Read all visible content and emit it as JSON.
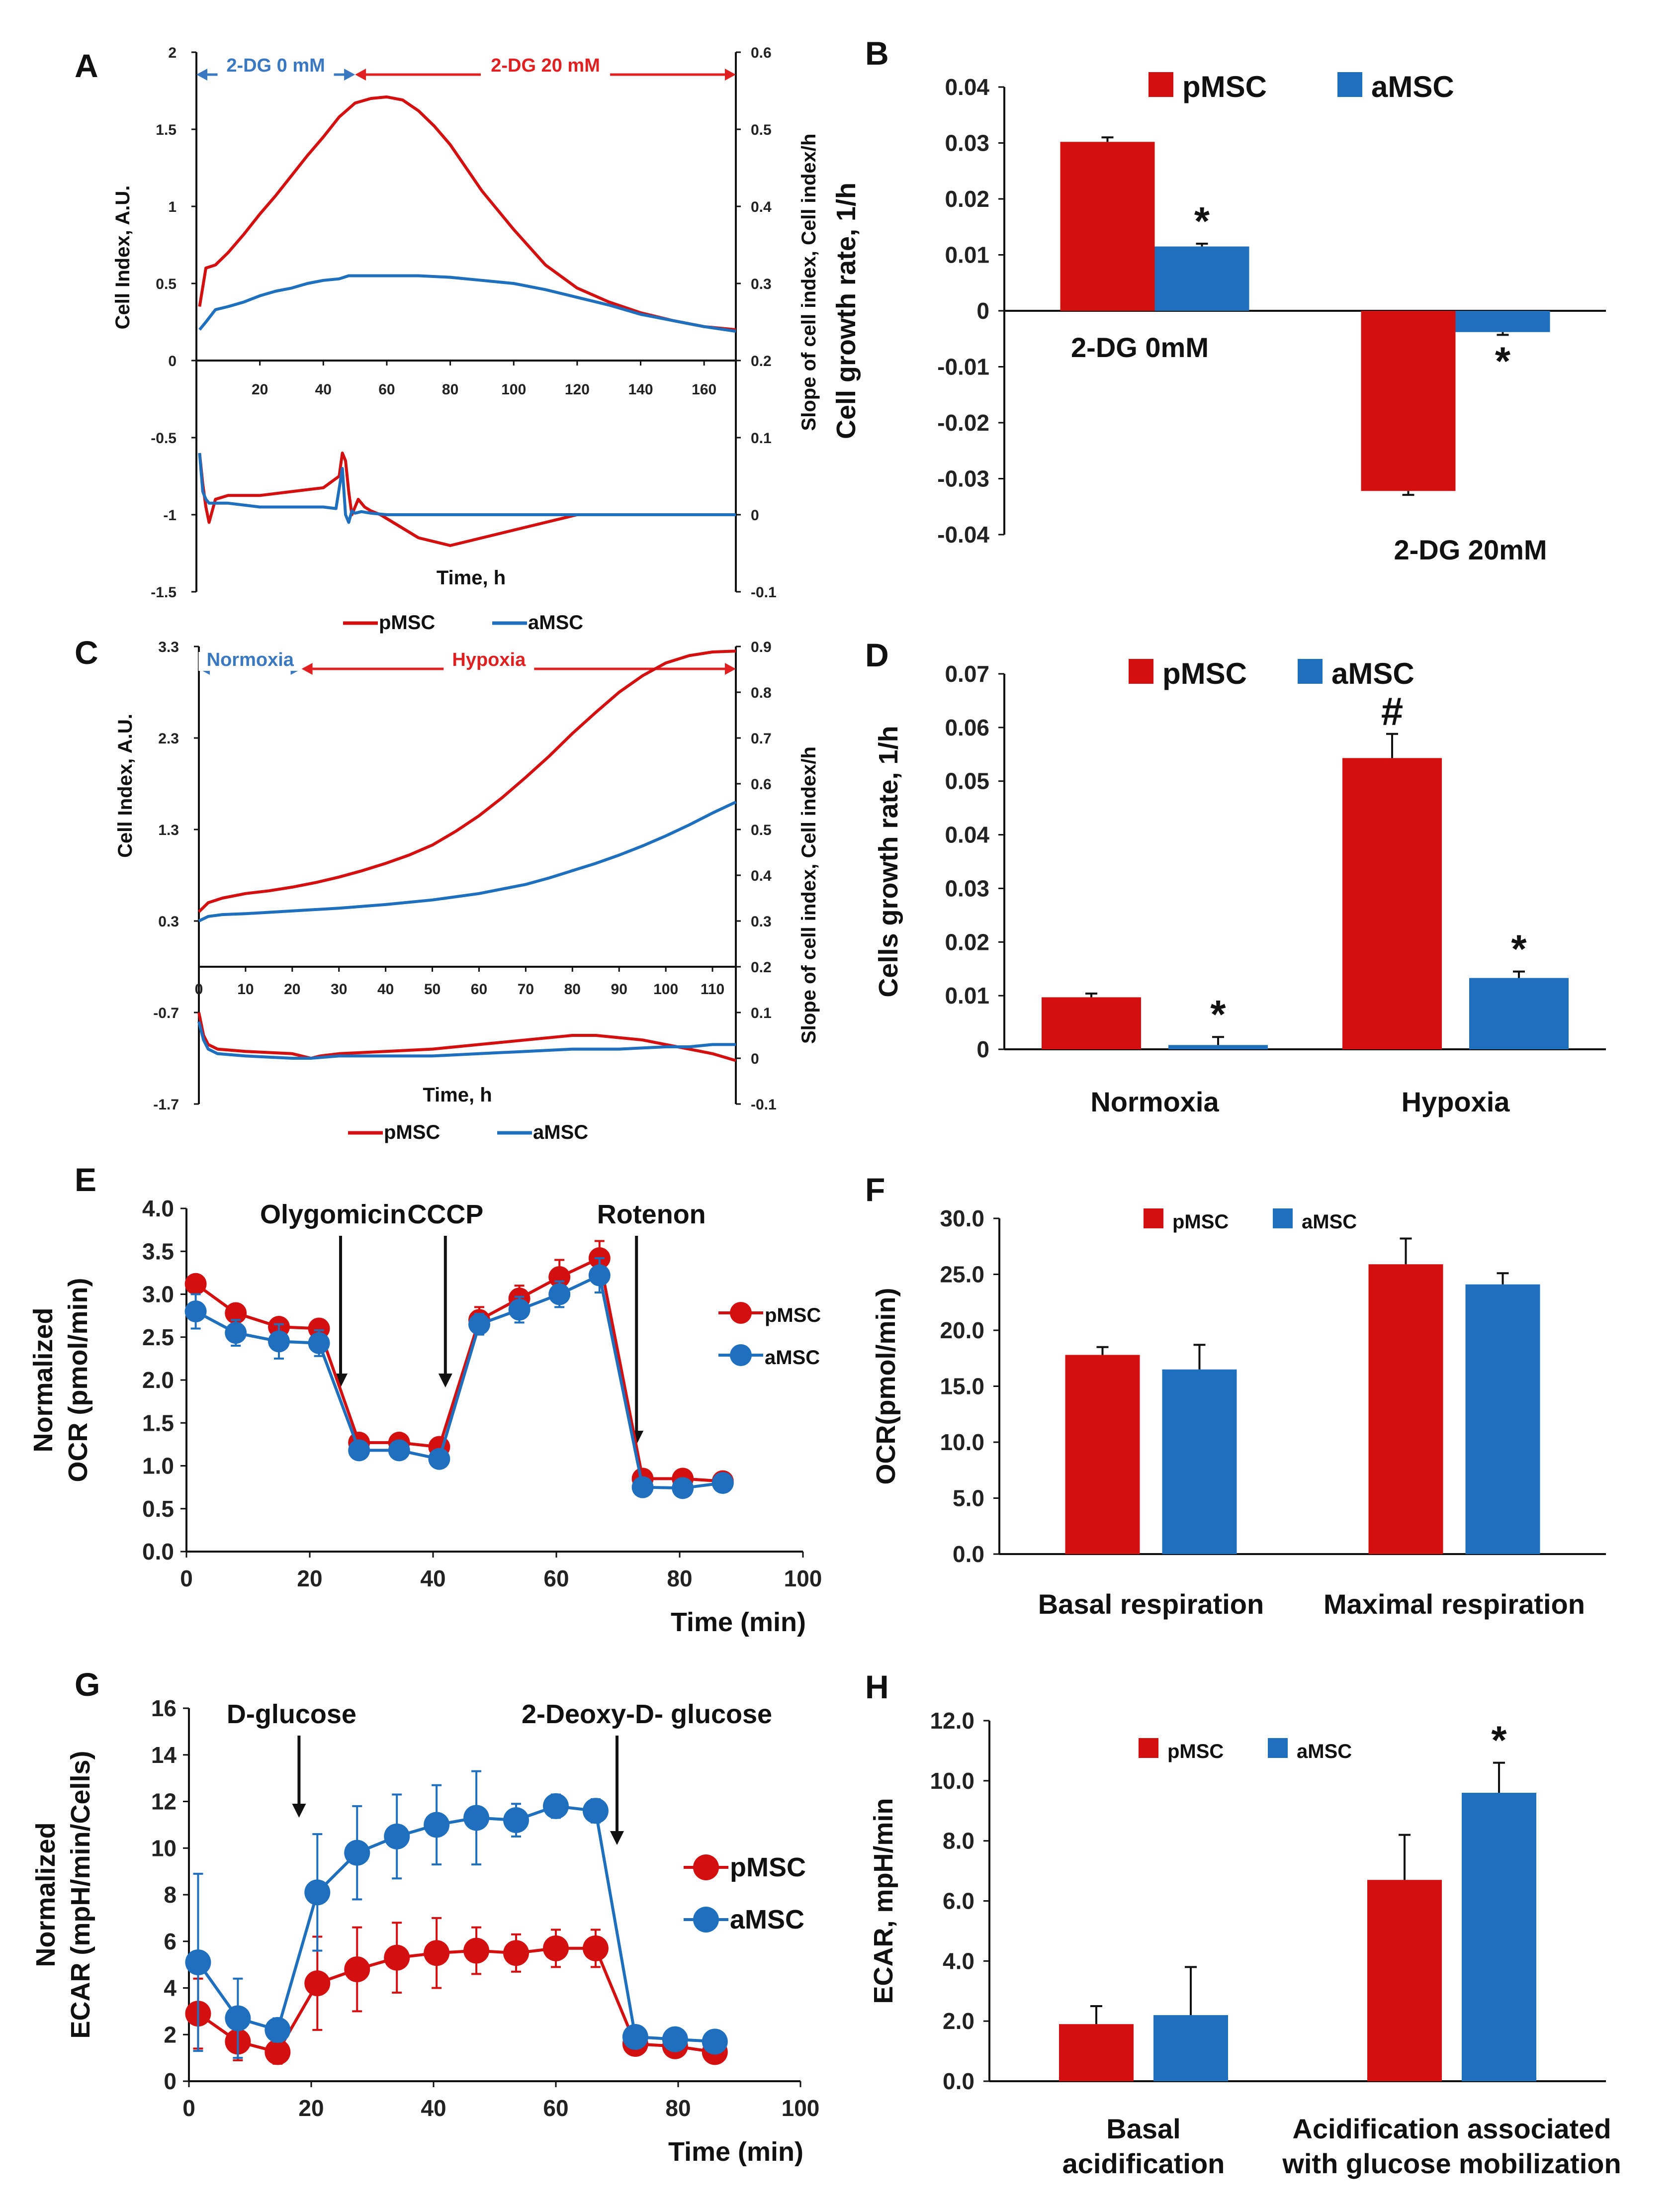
{
  "colors": {
    "pMSC": "#d40f0f",
    "aMSC": "#1f6fbf",
    "axis": "#111111"
  },
  "chart_data": [
    {
      "id": "A",
      "panel_label": "A",
      "type": "line",
      "xlabel": "Time, h",
      "ylabel": "Cell Index, A.U.",
      "y2label": "Slope of cell index, Cell index/h",
      "xlim": [
        0,
        170
      ],
      "ylim": [
        -1.5,
        2
      ],
      "y2lim": [
        -0.1,
        0.6
      ],
      "x_ticks": [
        "20",
        "40",
        "60",
        "80",
        "100",
        "120",
        "140",
        "160"
      ],
      "y_ticks": [
        "2",
        "1.5",
        "1",
        "0.5",
        "0",
        "-0.5",
        "-1",
        "-1.5"
      ],
      "y2_ticks": [
        "0.6",
        "0.5",
        "0.4",
        "0.3",
        "0.2",
        "0.1",
        "0",
        "-0.1"
      ],
      "phases": [
        {
          "label": "2-DG 0 mM",
          "from": 0,
          "to": 50,
          "color": "#3a78c2"
        },
        {
          "label": "2-DG 20 mM",
          "from": 50,
          "to": 170,
          "color": "#e02020"
        }
      ],
      "legend": [
        "pMSC",
        "aMSC"
      ],
      "series": [
        {
          "name": "pMSC",
          "axis": "left",
          "x": [
            1,
            3,
            6,
            10,
            15,
            20,
            25,
            30,
            35,
            40,
            45,
            50,
            55,
            60,
            65,
            70,
            75,
            80,
            90,
            100,
            110,
            120,
            130,
            140,
            150,
            160,
            170
          ],
          "y": [
            0.35,
            0.6,
            0.62,
            0.7,
            0.82,
            0.95,
            1.07,
            1.2,
            1.33,
            1.45,
            1.58,
            1.67,
            1.7,
            1.71,
            1.69,
            1.62,
            1.52,
            1.4,
            1.1,
            0.85,
            0.62,
            0.47,
            0.38,
            0.31,
            0.26,
            0.22,
            0.2
          ]
        },
        {
          "name": "aMSC",
          "axis": "left",
          "x": [
            1,
            3,
            6,
            10,
            15,
            20,
            25,
            30,
            35,
            40,
            45,
            48,
            50,
            55,
            60,
            70,
            80,
            90,
            100,
            110,
            120,
            130,
            140,
            150,
            160,
            170
          ],
          "y": [
            0.2,
            0.25,
            0.33,
            0.35,
            0.38,
            0.42,
            0.45,
            0.47,
            0.5,
            0.52,
            0.53,
            0.55,
            0.55,
            0.55,
            0.55,
            0.55,
            0.54,
            0.52,
            0.5,
            0.46,
            0.41,
            0.36,
            0.3,
            0.26,
            0.22,
            0.19
          ]
        },
        {
          "name": "pMSC",
          "axis": "right",
          "x": [
            1,
            2,
            3,
            4,
            6,
            10,
            20,
            30,
            40,
            45,
            46,
            47,
            48,
            49,
            50,
            51,
            53,
            55,
            58,
            62,
            70,
            80,
            90,
            100,
            110,
            120,
            140,
            160,
            170
          ],
          "y": [
            0.08,
            0.04,
            0.01,
            -0.01,
            0.02,
            0.025,
            0.025,
            0.03,
            0.035,
            0.05,
            0.08,
            0.07,
            0.03,
            0.0,
            0.01,
            0.02,
            0.01,
            0.005,
            0.0,
            -0.01,
            -0.03,
            -0.04,
            -0.03,
            -0.02,
            -0.01,
            0.0,
            0.0,
            0.0,
            0.0
          ]
        },
        {
          "name": "aMSC",
          "axis": "right",
          "x": [
            1,
            2,
            3,
            4,
            6,
            10,
            20,
            30,
            40,
            44,
            46,
            47,
            48,
            49,
            50,
            52,
            55,
            60,
            70,
            80,
            100,
            120,
            140,
            160,
            170
          ],
          "y": [
            0.08,
            0.03,
            0.02,
            0.015,
            0.015,
            0.015,
            0.01,
            0.01,
            0.01,
            0.008,
            0.06,
            0.0,
            -0.01,
            0.005,
            0.002,
            0.004,
            0.002,
            0.0,
            0.0,
            0.0,
            0.0,
            0.0,
            0.0,
            0.0,
            0.0
          ]
        }
      ]
    },
    {
      "id": "B",
      "panel_label": "B",
      "type": "bar",
      "ylabel": "Cell growth rate, 1/h",
      "ylim": [
        -0.04,
        0.04
      ],
      "y_ticks": [
        "0.04",
        "0.03",
        "0.02",
        "0.01",
        "0",
        "-0.01",
        "-0.02",
        "-0.03",
        "-0.04"
      ],
      "categories": [
        "2-DG  0mM",
        "2-DG 20mM"
      ],
      "legend": [
        "pMSC",
        "aMSC"
      ],
      "series": [
        {
          "name": "pMSC",
          "values": [
            0.0302,
            -0.0322
          ],
          "errors": [
            0.0008,
            0.0007
          ],
          "sig": [
            "",
            ""
          ]
        },
        {
          "name": "aMSC",
          "values": [
            0.0115,
            -0.0038
          ],
          "errors": [
            0.0005,
            0.0005
          ],
          "sig": [
            "*",
            "*"
          ]
        }
      ]
    },
    {
      "id": "C",
      "panel_label": "C",
      "type": "line",
      "xlabel": "Time, h",
      "ylabel": "Cell Index, A.U.",
      "y2label": "Slope of cell index, Cell index/h",
      "xlim": [
        0,
        115
      ],
      "ylim": [
        -1.7,
        3.3
      ],
      "y2lim": [
        -0.1,
        0.9
      ],
      "x_ticks": [
        "0",
        "10",
        "20",
        "30",
        "40",
        "50",
        "60",
        "70",
        "80",
        "90",
        "100",
        "110"
      ],
      "y_ticks": [
        "3.3",
        "2.3",
        "1.3",
        "0.3",
        "-0.7",
        "-1.7"
      ],
      "y2_ticks": [
        "0.9",
        "0.8",
        "0.7",
        "0.6",
        "0.5",
        "0.4",
        "0.3",
        "0.2",
        "0.1",
        "0",
        "-0.1"
      ],
      "phases": [
        {
          "label": "Normoxia",
          "from": 0,
          "to": 22,
          "color": "#3a78c2"
        },
        {
          "label": "Hypoxia",
          "from": 22,
          "to": 115,
          "color": "#e02020"
        }
      ],
      "legend": [
        "pMSC",
        "aMSC"
      ],
      "series": [
        {
          "name": "pMSC",
          "axis": "left",
          "x": [
            0,
            2,
            5,
            10,
            15,
            20,
            25,
            30,
            35,
            40,
            45,
            50,
            55,
            60,
            65,
            70,
            75,
            80,
            85,
            90,
            95,
            100,
            105,
            110,
            115
          ],
          "y": [
            0.4,
            0.5,
            0.55,
            0.6,
            0.63,
            0.67,
            0.72,
            0.78,
            0.85,
            0.93,
            1.02,
            1.13,
            1.28,
            1.45,
            1.65,
            1.87,
            2.1,
            2.35,
            2.58,
            2.8,
            2.98,
            3.12,
            3.2,
            3.24,
            3.25
          ]
        },
        {
          "name": "aMSC",
          "axis": "left",
          "x": [
            0,
            2,
            5,
            10,
            20,
            30,
            40,
            50,
            60,
            70,
            75,
            80,
            85,
            90,
            95,
            100,
            105,
            110,
            115
          ],
          "y": [
            0.3,
            0.35,
            0.37,
            0.38,
            0.41,
            0.44,
            0.48,
            0.53,
            0.6,
            0.7,
            0.77,
            0.85,
            0.93,
            1.02,
            1.12,
            1.23,
            1.35,
            1.48,
            1.6
          ]
        },
        {
          "name": "pMSC",
          "axis": "right",
          "x": [
            0,
            1,
            2,
            4,
            10,
            20,
            24,
            26,
            30,
            40,
            50,
            60,
            70,
            80,
            85,
            90,
            95,
            100,
            105,
            110,
            115
          ],
          "y": [
            0.1,
            0.05,
            0.03,
            0.02,
            0.015,
            0.01,
            0.0,
            0.005,
            0.01,
            0.015,
            0.02,
            0.03,
            0.04,
            0.05,
            0.05,
            0.045,
            0.04,
            0.03,
            0.02,
            0.01,
            -0.005
          ]
        },
        {
          "name": "aMSC",
          "axis": "right",
          "x": [
            0,
            1,
            2,
            4,
            10,
            20,
            24,
            30,
            40,
            50,
            60,
            70,
            80,
            90,
            100,
            105,
            110,
            115
          ],
          "y": [
            0.08,
            0.04,
            0.02,
            0.01,
            0.005,
            0.0,
            0.0,
            0.005,
            0.005,
            0.005,
            0.01,
            0.015,
            0.02,
            0.02,
            0.025,
            0.025,
            0.03,
            0.03
          ]
        }
      ]
    },
    {
      "id": "D",
      "panel_label": "D",
      "type": "bar",
      "ylabel": "Cells growth rate, 1/h",
      "ylim": [
        0,
        0.07
      ],
      "y_ticks": [
        "0.07",
        "0.06",
        "0.05",
        "0.04",
        "0.03",
        "0.02",
        "0.01",
        "0"
      ],
      "categories": [
        "Normoxia",
        "Hypoxia"
      ],
      "legend": [
        "pMSC",
        "aMSC"
      ],
      "series": [
        {
          "name": "pMSC",
          "values": [
            0.0097,
            0.0543
          ],
          "errors": [
            0.0007,
            0.0045
          ],
          "sig": [
            "",
            "#"
          ]
        },
        {
          "name": "aMSC",
          "values": [
            0.0008,
            0.0133
          ],
          "errors": [
            0.0015,
            0.0012
          ],
          "sig": [
            "*",
            "*"
          ]
        }
      ]
    },
    {
      "id": "E",
      "panel_label": "E",
      "type": "line",
      "xlabel": "Time (min)",
      "ylabel": "Normalized",
      "ylabel2": "OCR (pmol/min)",
      "xlim": [
        0,
        100
      ],
      "ylim": [
        0,
        4.0
      ],
      "x_ticks": [
        "0",
        "20",
        "40",
        "60",
        "80",
        "100"
      ],
      "y_ticks": [
        "4.0",
        "3.5",
        "3.0",
        "2.5",
        "2.0",
        "1.5",
        "1.0",
        "0.5",
        "0.0"
      ],
      "annotations": [
        {
          "label": "Olygomicin",
          "x": 25
        },
        {
          "label": "CCCP",
          "x": 42
        },
        {
          "label": "Rotenon",
          "x": 73
        }
      ],
      "legend": [
        "pMSC",
        "aMSC"
      ],
      "series": [
        {
          "name": "pMSC",
          "x": [
            1.5,
            8,
            15,
            21.5,
            28,
            34.5,
            41,
            47.5,
            54,
            60.5,
            67,
            74,
            80.5,
            87
          ],
          "y": [
            3.12,
            2.78,
            2.62,
            2.6,
            1.27,
            1.27,
            1.22,
            2.7,
            2.95,
            3.2,
            3.42,
            0.85,
            0.85,
            0.82
          ],
          "err": [
            0.1,
            0.1,
            0.1,
            0.1,
            0.06,
            0.06,
            0.06,
            0.15,
            0.15,
            0.2,
            0.2,
            0.05,
            0.05,
            0.05
          ]
        },
        {
          "name": "aMSC",
          "x": [
            1.5,
            8,
            15,
            21.5,
            28,
            34.5,
            41,
            47.5,
            54,
            60.5,
            67,
            74,
            80.5,
            87
          ],
          "y": [
            2.8,
            2.55,
            2.45,
            2.43,
            1.18,
            1.18,
            1.08,
            2.65,
            2.82,
            3.0,
            3.22,
            0.75,
            0.74,
            0.8
          ],
          "err": [
            0.2,
            0.15,
            0.2,
            0.15,
            0.06,
            0.06,
            0.06,
            0.12,
            0.15,
            0.15,
            0.2,
            0.05,
            0.05,
            0.05
          ]
        }
      ]
    },
    {
      "id": "F",
      "panel_label": "F",
      "type": "bar",
      "ylabel": "OCR(pmol/min)",
      "ylim": [
        0,
        30
      ],
      "y_ticks": [
        "30.0",
        "25.0",
        "20.0",
        "15.0",
        "10.0",
        "5.0",
        "0.0"
      ],
      "categories": [
        "Basal respiration",
        "Maximal respiration"
      ],
      "legend": [
        "pMSC",
        "aMSC"
      ],
      "series": [
        {
          "name": "pMSC",
          "values": [
            17.8,
            25.9
          ],
          "errors": [
            0.7,
            2.3
          ],
          "sig": [
            "",
            ""
          ]
        },
        {
          "name": "aMSC",
          "values": [
            16.5,
            24.1
          ],
          "errors": [
            2.2,
            1.0
          ],
          "sig": [
            "",
            ""
          ]
        }
      ]
    },
    {
      "id": "G",
      "panel_label": "G",
      "type": "line",
      "xlabel": "Time (min)",
      "ylabel": "Normalized",
      "ylabel2": "ECAR (mpH/min/Cells)",
      "xlim": [
        0,
        100
      ],
      "ylim": [
        0,
        16
      ],
      "x_ticks": [
        "0",
        "20",
        "40",
        "60",
        "80",
        "100"
      ],
      "y_ticks": [
        "16",
        "14",
        "12",
        "10",
        "8",
        "6",
        "4",
        "2",
        "0"
      ],
      "annotations": [
        {
          "label": "D-glucose",
          "x": 18
        },
        {
          "label": "2-Deoxy-D- glucose",
          "x": 70
        }
      ],
      "legend": [
        "pMSC",
        "aMSC"
      ],
      "series": [
        {
          "name": "pMSC",
          "x": [
            1.5,
            8,
            14.5,
            21,
            27.5,
            34,
            40.5,
            47,
            53.5,
            60,
            66.5,
            73,
            79.5,
            86
          ],
          "y": [
            2.9,
            1.7,
            1.25,
            4.2,
            4.8,
            5.3,
            5.5,
            5.6,
            5.5,
            5.7,
            5.7,
            1.6,
            1.5,
            1.25
          ],
          "err": [
            1.5,
            0.8,
            0.5,
            2.0,
            1.8,
            1.5,
            1.5,
            1.0,
            0.8,
            0.8,
            0.8,
            0.3,
            0.3,
            0.3
          ]
        },
        {
          "name": "aMSC",
          "x": [
            1.5,
            8,
            14.5,
            21,
            27.5,
            34,
            40.5,
            47,
            53.5,
            60,
            66.5,
            73,
            79.5,
            86
          ],
          "y": [
            5.1,
            2.7,
            2.2,
            8.1,
            9.8,
            10.5,
            11.0,
            11.3,
            11.2,
            11.8,
            11.6,
            1.9,
            1.8,
            1.7
          ],
          "err": [
            3.8,
            1.7,
            0.5,
            2.5,
            2.0,
            1.8,
            1.7,
            2.0,
            0.7,
            0.5,
            0.5,
            0.4,
            0.4,
            0.3
          ]
        }
      ]
    },
    {
      "id": "H",
      "panel_label": "H",
      "type": "bar",
      "ylabel": "ECAR, mpH/min",
      "ylim": [
        0,
        12
      ],
      "y_ticks": [
        "12.0",
        "10.0",
        "8.0",
        "6.0",
        "4.0",
        "2.0",
        "0.0"
      ],
      "categories": [
        "Basal acidification",
        "Acidification associated with glucose mobilization"
      ],
      "category_lines": [
        [
          "Basal",
          "acidification"
        ],
        [
          "Acidification associated",
          "with glucose mobilization"
        ]
      ],
      "legend": [
        "pMSC",
        "aMSC"
      ],
      "series": [
        {
          "name": "pMSC",
          "values": [
            1.9,
            6.7
          ],
          "errors": [
            0.6,
            1.5
          ],
          "sig": [
            "",
            ""
          ]
        },
        {
          "name": "aMSC",
          "values": [
            2.2,
            9.6
          ],
          "errors": [
            1.6,
            1.0
          ],
          "sig": [
            "",
            "*"
          ]
        }
      ]
    }
  ]
}
